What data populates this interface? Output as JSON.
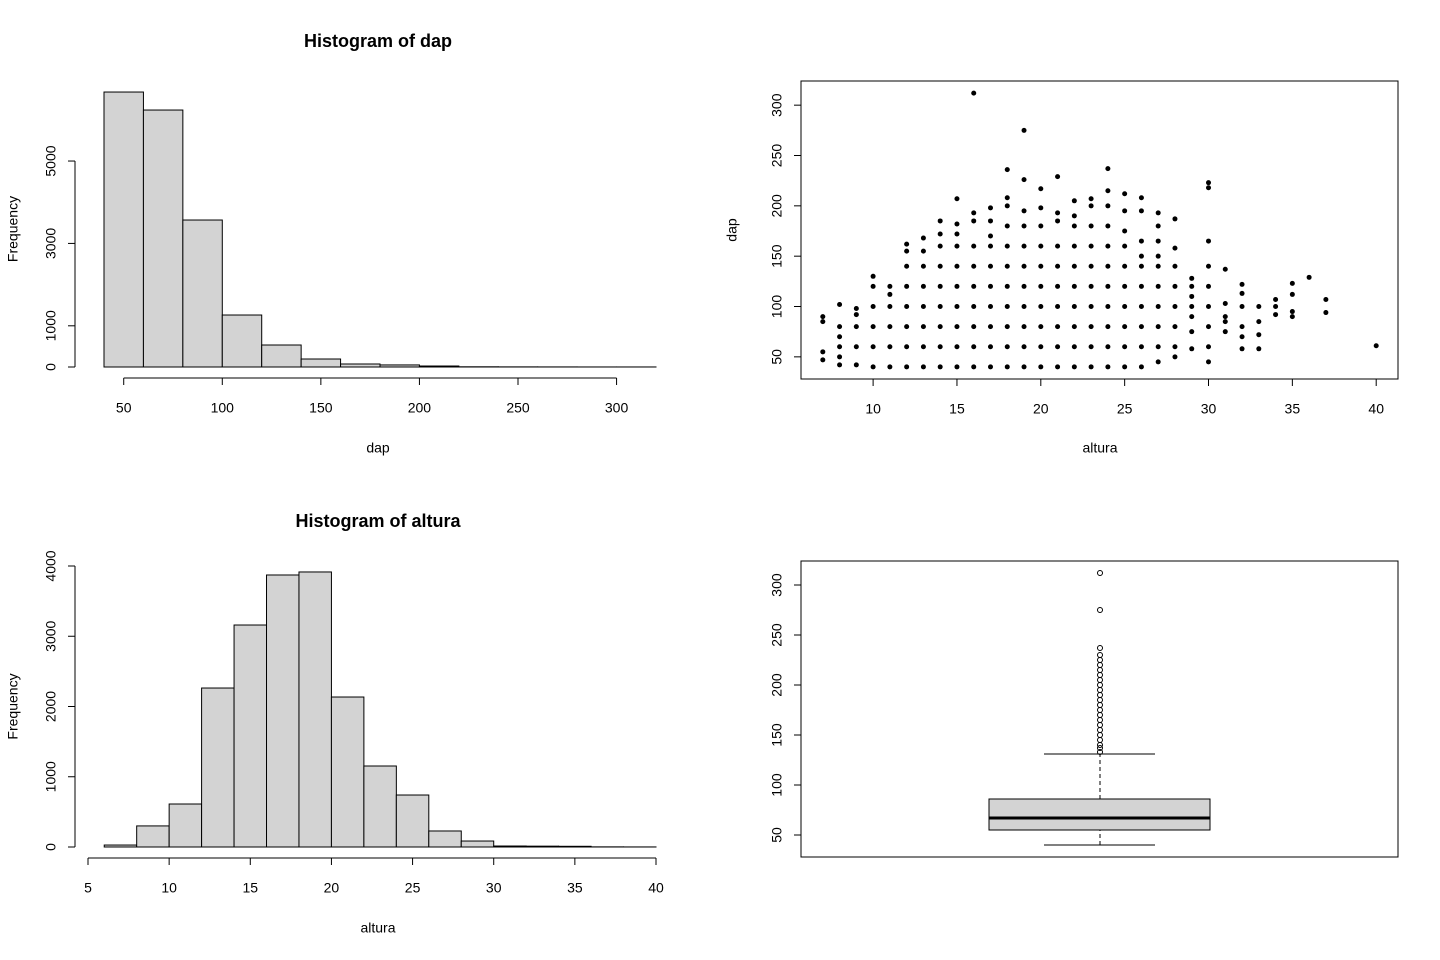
{
  "chart_data": [
    {
      "type": "histogram",
      "title": "Histogram of dap",
      "xlabel": "dap",
      "ylabel": "Frequency",
      "bins": [
        40,
        60,
        80,
        100,
        120,
        140,
        160,
        180,
        200,
        220,
        240,
        260,
        280,
        300,
        320
      ],
      "values": [
        6675,
        6238,
        3568,
        1262,
        534,
        194,
        73,
        50,
        24,
        5,
        3,
        2,
        1,
        1
      ],
      "color": "#d3d3d3",
      "xlim": [
        40,
        320
      ],
      "xticks": [
        50,
        100,
        150,
        200,
        250,
        300
      ],
      "ylim": [
        0,
        6700
      ],
      "yticks": [
        0,
        1000,
        3000,
        5000
      ]
    },
    {
      "type": "scatter",
      "xlabel": "altura",
      "ylabel": "dap",
      "color": "#000000",
      "x": [
        7,
        7,
        7,
        7,
        8,
        8,
        8,
        8,
        8,
        8,
        9,
        9,
        9,
        9,
        9,
        10,
        10,
        10,
        10,
        10,
        10,
        11,
        11,
        11,
        11,
        11,
        11,
        12,
        12,
        12,
        12,
        12,
        12,
        12,
        12,
        13,
        13,
        13,
        13,
        13,
        13,
        13,
        13,
        14,
        14,
        14,
        14,
        14,
        14,
        14,
        14,
        14,
        15,
        15,
        15,
        15,
        15,
        15,
        15,
        15,
        15,
        15,
        16,
        16,
        16,
        16,
        16,
        16,
        16,
        16,
        16,
        16,
        17,
        17,
        17,
        17,
        17,
        17,
        17,
        17,
        17,
        17,
        18,
        18,
        18,
        18,
        18,
        18,
        18,
        18,
        18,
        18,
        18,
        19,
        19,
        19,
        19,
        19,
        19,
        19,
        19,
        19,
        19,
        19,
        20,
        20,
        20,
        20,
        20,
        20,
        20,
        20,
        20,
        20,
        21,
        21,
        21,
        21,
        21,
        21,
        21,
        21,
        21,
        21,
        22,
        22,
        22,
        22,
        22,
        22,
        22,
        22,
        22,
        22,
        23,
        23,
        23,
        23,
        23,
        23,
        23,
        23,
        23,
        23,
        24,
        24,
        24,
        24,
        24,
        24,
        24,
        24,
        24,
        24,
        24,
        25,
        25,
        25,
        25,
        25,
        25,
        25,
        25,
        25,
        25,
        26,
        26,
        26,
        26,
        26,
        26,
        26,
        26,
        26,
        26,
        27,
        27,
        27,
        27,
        27,
        27,
        27,
        27,
        27,
        27,
        28,
        28,
        28,
        28,
        28,
        28,
        28,
        28,
        29,
        29,
        29,
        29,
        29,
        29,
        29,
        30,
        30,
        30,
        30,
        30,
        30,
        30,
        30,
        30,
        31,
        31,
        31,
        31,
        31,
        32,
        32,
        32,
        32,
        32,
        32,
        33,
        33,
        33,
        33,
        34,
        34,
        34,
        35,
        35,
        35,
        35,
        36,
        37,
        37,
        40
      ],
      "values": [
        47,
        55,
        85,
        90,
        42,
        50,
        60,
        70,
        80,
        102,
        42,
        60,
        80,
        92,
        98,
        40,
        60,
        80,
        100,
        120,
        130,
        40,
        60,
        80,
        100,
        112,
        120,
        40,
        60,
        80,
        100,
        120,
        140,
        155,
        162,
        40,
        60,
        80,
        100,
        120,
        140,
        155,
        168,
        40,
        60,
        80,
        100,
        120,
        140,
        160,
        172,
        185,
        40,
        60,
        80,
        100,
        120,
        140,
        160,
        172,
        182,
        207,
        40,
        60,
        80,
        100,
        120,
        140,
        160,
        185,
        193,
        312,
        40,
        60,
        80,
        100,
        120,
        140,
        160,
        170,
        185,
        198,
        40,
        60,
        80,
        100,
        120,
        140,
        160,
        180,
        200,
        208,
        236,
        40,
        60,
        80,
        100,
        120,
        140,
        160,
        180,
        195,
        226,
        275,
        40,
        60,
        80,
        100,
        120,
        140,
        160,
        180,
        198,
        217,
        40,
        60,
        80,
        100,
        120,
        140,
        160,
        185,
        193,
        229,
        40,
        60,
        80,
        100,
        120,
        140,
        160,
        180,
        190,
        205,
        40,
        60,
        80,
        100,
        120,
        140,
        160,
        180,
        200,
        207,
        40,
        60,
        80,
        100,
        120,
        140,
        160,
        180,
        200,
        215,
        237,
        40,
        60,
        80,
        100,
        120,
        140,
        160,
        175,
        195,
        212,
        40,
        60,
        80,
        100,
        120,
        140,
        150,
        165,
        195,
        208,
        45,
        60,
        80,
        100,
        120,
        140,
        150,
        165,
        180,
        193,
        50,
        60,
        80,
        100,
        120,
        140,
        158,
        187,
        58,
        75,
        90,
        100,
        110,
        120,
        128,
        45,
        60,
        80,
        100,
        120,
        140,
        165,
        218,
        223,
        75,
        85,
        90,
        103,
        137,
        58,
        70,
        80,
        100,
        113,
        122,
        58,
        72,
        85,
        100,
        92,
        100,
        107,
        90,
        95,
        112,
        123,
        129,
        94,
        107,
        61
      ],
      "xlim": [
        5.7,
        41.3
      ],
      "xticks": [
        10,
        15,
        20,
        25,
        30,
        35,
        40
      ],
      "ylim": [
        28,
        324
      ],
      "yticks": [
        50,
        100,
        150,
        200,
        250,
        300
      ]
    },
    {
      "type": "histogram",
      "title": "Histogram of altura",
      "xlabel": "altura",
      "ylabel": "Frequency",
      "bins": [
        6,
        8,
        10,
        12,
        14,
        16,
        18,
        20,
        22,
        24,
        26,
        28,
        30,
        32,
        34,
        36,
        38,
        40
      ],
      "values": [
        28,
        300,
        612,
        2263,
        3160,
        3872,
        3915,
        2135,
        1153,
        740,
        228,
        85,
        14,
        12,
        10,
        2,
        1
      ],
      "color": "#d3d3d3",
      "xlim": [
        5,
        40
      ],
      "xticks": [
        5,
        10,
        15,
        20,
        25,
        30,
        35,
        40
      ],
      "ylim": [
        0,
        4000
      ],
      "yticks": [
        0,
        1000,
        2000,
        3000,
        4000
      ]
    },
    {
      "type": "box",
      "color": "#d3d3d3",
      "whisker_low": 40,
      "q1": 55,
      "median": 67,
      "q3": 86,
      "whisker_high": 131,
      "outliers": [
        133,
        137,
        140,
        145,
        150,
        155,
        160,
        165,
        170,
        175,
        180,
        185,
        190,
        195,
        200,
        205,
        210,
        215,
        220,
        225,
        230,
        237,
        275,
        312
      ],
      "ylim": [
        28,
        324
      ],
      "yticks": [
        50,
        100,
        150,
        200,
        250,
        300
      ]
    }
  ]
}
